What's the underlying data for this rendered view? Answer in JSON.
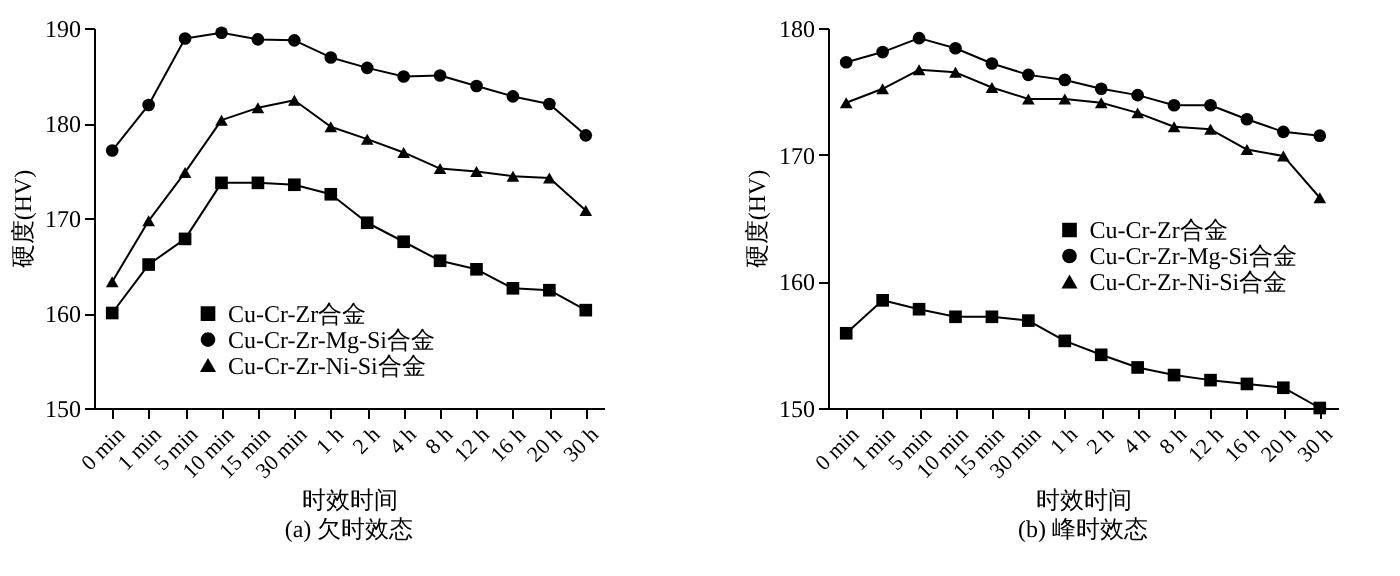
{
  "chart_data": [
    {
      "type": "line",
      "title": "(a) 欠时效态",
      "xlabel": "时效时间",
      "ylabel": "硬度(HV)",
      "categories": [
        "0 min",
        "1 min",
        "5 min",
        "10 min",
        "15 min",
        "30 min",
        "1 h",
        "2 h",
        "4 h",
        "8 h",
        "12 h",
        "16 h",
        "20 h",
        "30 h"
      ],
      "ylim": [
        150,
        190
      ],
      "yticks": [
        150,
        160,
        170,
        180,
        190
      ],
      "legend": "bottom left",
      "grid": false,
      "series": [
        {
          "name": "Cu-Cr-Zr合金",
          "color": "#000000",
          "marker": "square",
          "values": [
            160,
            165.1,
            167.8,
            173.7,
            173.7,
            173.5,
            172.5,
            169.5,
            167.5,
            165.5,
            164.6,
            162.6,
            162.4,
            160.3
          ]
        },
        {
          "name": "Cu-Cr-Zr-Mg-Si合金",
          "color": "#000000",
          "marker": "circle",
          "values": [
            177.1,
            181.9,
            188.9,
            189.5,
            188.8,
            188.7,
            186.9,
            185.8,
            184.9,
            185,
            183.9,
            182.8,
            182,
            178.7
          ]
        },
        {
          "name": "Cu-Cr-Zr-Ni-Si合金",
          "color": "#000000",
          "marker": "triangle",
          "values": [
            163.3,
            169.7,
            174.8,
            180.3,
            181.6,
            182.4,
            179.6,
            178.3,
            176.9,
            175.2,
            174.9,
            174.4,
            174.2,
            170.8
          ]
        }
      ]
    },
    {
      "type": "line",
      "title": "(b) 峰时效态",
      "xlabel": "时效时间",
      "ylabel": "硬度(HV)",
      "categories": [
        "0 min",
        "1 min",
        "5 min",
        "10 min",
        "15 min",
        "30 min",
        "1 h",
        "2 h",
        "4 h",
        "8 h",
        "12 h",
        "16 h",
        "20 h",
        "30 h"
      ],
      "ylim": [
        150,
        180
      ],
      "yticks": [
        150,
        160,
        170,
        180
      ],
      "legend": "center right",
      "grid": false,
      "series": [
        {
          "name": "Cu-Cr-Zr合金",
          "color": "#000000",
          "marker": "square",
          "values": [
            155.9,
            158.5,
            157.8,
            157.2,
            157.2,
            156.9,
            155.3,
            154.2,
            153.2,
            152.6,
            152.2,
            151.9,
            151.6,
            150
          ]
        },
        {
          "name": "Cu-Cr-Zr-Mg-Si合金",
          "color": "#000000",
          "marker": "circle",
          "values": [
            177.3,
            178.1,
            179.2,
            178.4,
            177.2,
            176.3,
            175.9,
            175.2,
            174.7,
            173.9,
            173.9,
            172.8,
            171.8,
            171.5
          ]
        },
        {
          "name": "Cu-Cr-Zr-Ni-Si合金",
          "color": "#000000",
          "marker": "triangle",
          "values": [
            174.1,
            175.2,
            176.7,
            176.5,
            175.3,
            174.4,
            174.4,
            174.1,
            173.3,
            172.2,
            172,
            170.4,
            169.9,
            166.6
          ]
        }
      ]
    }
  ]
}
